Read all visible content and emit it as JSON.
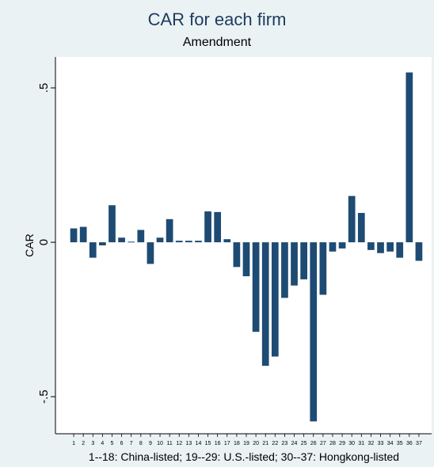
{
  "chart_data": {
    "type": "bar",
    "title": "CAR for each firm",
    "subtitle": "Amendment",
    "ylabel": "CAR",
    "xlabel": "1--18: China-listed;  19--29: U.S.-listed; 30--37: Hongkong-listed",
    "ylim": [
      -0.62,
      0.6
    ],
    "yticks": [
      -0.5,
      0,
      0.5
    ],
    "ytick_labels": [
      "-.5",
      "0",
      ".5"
    ],
    "grid": false,
    "categories": [
      "1",
      "2",
      "3",
      "4",
      "5",
      "6",
      "7",
      "8",
      "9",
      "10",
      "11",
      "12",
      "13",
      "14",
      "15",
      "16",
      "17",
      "18",
      "19",
      "20",
      "21",
      "22",
      "23",
      "24",
      "25",
      "26",
      "27",
      "28",
      "29",
      "30",
      "31",
      "32",
      "33",
      "34",
      "35",
      "36",
      "37"
    ],
    "series": [
      {
        "values": [
          0.045,
          0.05,
          -0.05,
          -0.01,
          0.12,
          0.015,
          0.002,
          0.04,
          -0.07,
          0.015,
          0.075,
          0.005,
          0.005,
          0.005,
          0.1,
          0.098,
          0.01,
          -0.08,
          -0.11,
          -0.29,
          -0.4,
          -0.37,
          -0.18,
          -0.14,
          -0.12,
          -0.58,
          -0.17,
          -0.03,
          -0.02,
          0.15,
          0.095,
          -0.025,
          -0.035,
          -0.03,
          -0.05,
          0.55,
          -0.06
        ]
      }
    ],
    "colors": {
      "bar": "#1e4b73",
      "background": "#eaf2f3",
      "title": "#1e3a5f"
    }
  }
}
